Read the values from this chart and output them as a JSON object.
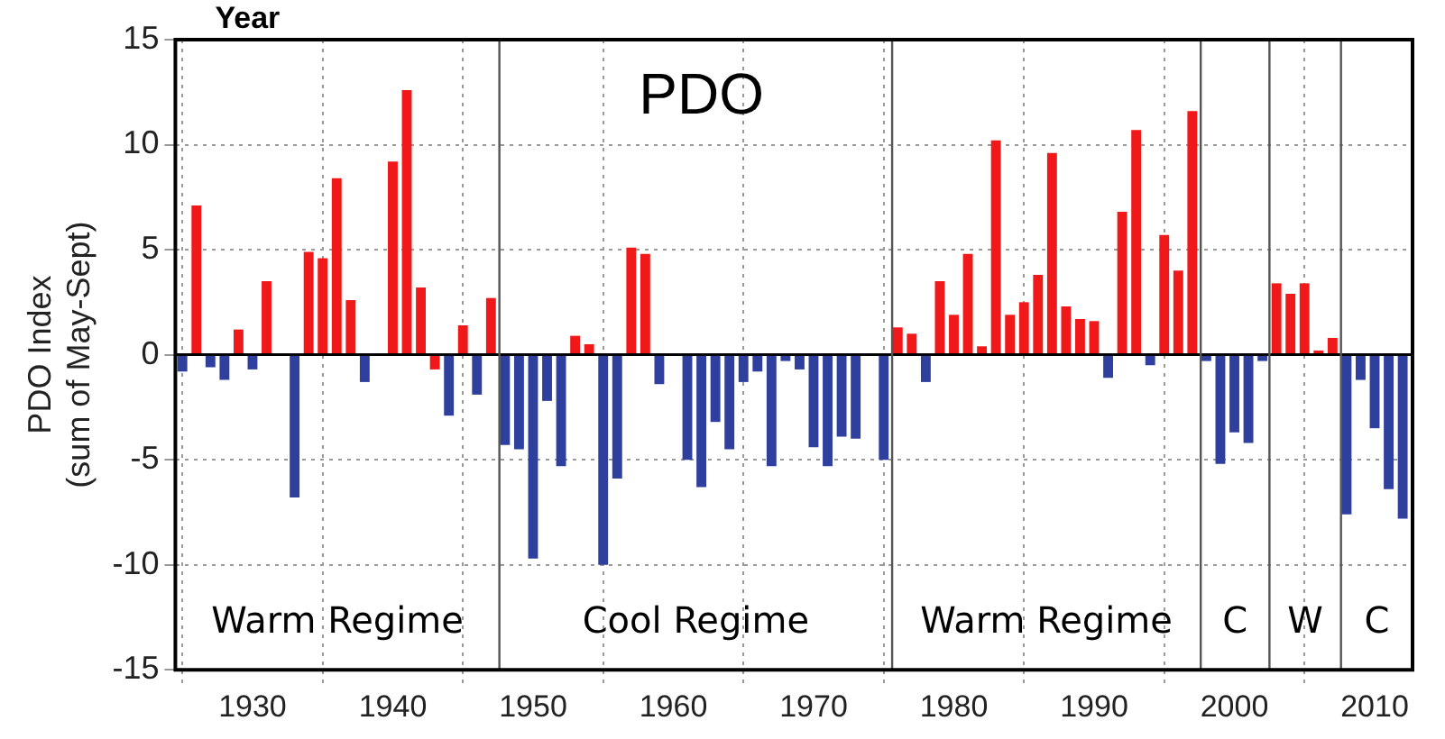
{
  "chart_data": {
    "type": "bar",
    "title": "PDO",
    "xlabel": "Year",
    "ylabel": "PDO Index\n(sum of May-Sept)",
    "x": [
      1925,
      1926,
      1927,
      1928,
      1929,
      1930,
      1931,
      1932,
      1933,
      1934,
      1935,
      1936,
      1937,
      1938,
      1939,
      1940,
      1941,
      1942,
      1943,
      1944,
      1945,
      1946,
      1947,
      1948,
      1949,
      1950,
      1951,
      1952,
      1953,
      1954,
      1955,
      1956,
      1957,
      1958,
      1959,
      1960,
      1961,
      1962,
      1963,
      1964,
      1965,
      1966,
      1967,
      1968,
      1969,
      1970,
      1971,
      1972,
      1973,
      1974,
      1975,
      1976,
      1977,
      1978,
      1979,
      1980,
      1981,
      1982,
      1983,
      1984,
      1985,
      1986,
      1987,
      1988,
      1989,
      1990,
      1991,
      1992,
      1993,
      1994,
      1995,
      1996,
      1997,
      1998,
      1999,
      2000,
      2001,
      2002,
      2003,
      2004,
      2005,
      2006,
      2007,
      2008,
      2009,
      2010,
      2011,
      2012
    ],
    "values": [
      -0.8,
      7.1,
      -0.6,
      -1.2,
      1.2,
      -0.7,
      3.5,
      0,
      -6.8,
      4.9,
      4.6,
      8.4,
      2.6,
      -1.3,
      0,
      9.2,
      12.6,
      3.2,
      -0.7,
      -2.9,
      1.4,
      -1.9,
      2.7,
      -4.3,
      -4.5,
      -9.7,
      -2.2,
      -5.3,
      0.9,
      0.5,
      -10.0,
      -5.9,
      5.1,
      4.8,
      -1.4,
      0,
      -5.0,
      -6.3,
      -3.2,
      -4.5,
      -1.3,
      -0.8,
      -5.3,
      -0.3,
      -0.7,
      -4.4,
      -5.3,
      -3.9,
      -4.0,
      0,
      -5.0,
      1.3,
      1.0,
      -1.3,
      3.5,
      1.9,
      4.8,
      0.4,
      10.2,
      1.9,
      2.5,
      3.8,
      9.6,
      2.3,
      1.7,
      1.6,
      -1.1,
      6.8,
      10.7,
      -0.5,
      5.7,
      4.0,
      11.6,
      -0.3,
      -5.2,
      -3.7,
      -4.2,
      -0.3,
      3.4,
      2.9,
      3.4,
      0.2,
      0.8,
      -7.6,
      -1.2,
      -3.5,
      -6.4,
      -7.8
    ],
    "colors": [
      "#2e3f9e",
      "#f01818",
      "#2e3f9e",
      "#2e3f9e",
      "#f01818",
      "#2e3f9e",
      "#f01818",
      "#2e3f9e",
      "#2e3f9e",
      "#f01818",
      "#f01818",
      "#f01818",
      "#f01818",
      "#2e3f9e",
      "#2e3f9e",
      "#f01818",
      "#f01818",
      "#f01818",
      "#f01818",
      "#2e3f9e",
      "#f01818",
      "#2e3f9e",
      "#f01818",
      "#2e3f9e",
      "#2e3f9e",
      "#2e3f9e",
      "#2e3f9e",
      "#2e3f9e",
      "#f01818",
      "#f01818",
      "#2e3f9e",
      "#2e3f9e",
      "#f01818",
      "#f01818",
      "#2e3f9e",
      "#2e3f9e",
      "#2e3f9e",
      "#2e3f9e",
      "#2e3f9e",
      "#2e3f9e",
      "#2e3f9e",
      "#2e3f9e",
      "#2e3f9e",
      "#2e3f9e",
      "#2e3f9e",
      "#2e3f9e",
      "#2e3f9e",
      "#2e3f9e",
      "#2e3f9e",
      "#2e3f9e",
      "#2e3f9e",
      "#f01818",
      "#f01818",
      "#2e3f9e",
      "#f01818",
      "#f01818",
      "#f01818",
      "#f01818",
      "#f01818",
      "#f01818",
      "#f01818",
      "#f01818",
      "#f01818",
      "#f01818",
      "#f01818",
      "#f01818",
      "#2e3f9e",
      "#f01818",
      "#f01818",
      "#2e3f9e",
      "#f01818",
      "#f01818",
      "#f01818",
      "#2e3f9e",
      "#2e3f9e",
      "#2e3f9e",
      "#2e3f9e",
      "#2e3f9e",
      "#f01818",
      "#f01818",
      "#f01818",
      "#f01818",
      "#f01818",
      "#2e3f9e",
      "#2e3f9e",
      "#2e3f9e",
      "#2e3f9e",
      "#2e3f9e"
    ],
    "xlim": [
      1924.5,
      2012.7
    ],
    "xticks": [
      1930,
      1940,
      1950,
      1960,
      1970,
      1980,
      1990,
      2000,
      2010
    ],
    "ylim": [
      -15,
      15
    ],
    "yticks": [
      -15,
      -10,
      -5,
      0,
      5,
      10,
      15
    ],
    "grid": true,
    "legend": false,
    "ref_lines": [
      {
        "axis": "x",
        "value": 1947.6,
        "color": "#555555"
      },
      {
        "axis": "x",
        "value": 1975.6,
        "color": "#555555"
      },
      {
        "axis": "x",
        "value": 1997.6,
        "color": "#555555"
      },
      {
        "axis": "x",
        "value": 2002.5,
        "color": "#555555"
      },
      {
        "axis": "x",
        "value": 2007.6,
        "color": "#555555"
      }
    ],
    "annotations": [
      "Warm Regime",
      "Cool Regime",
      "Warm Regime",
      "C",
      "W",
      "C"
    ]
  }
}
